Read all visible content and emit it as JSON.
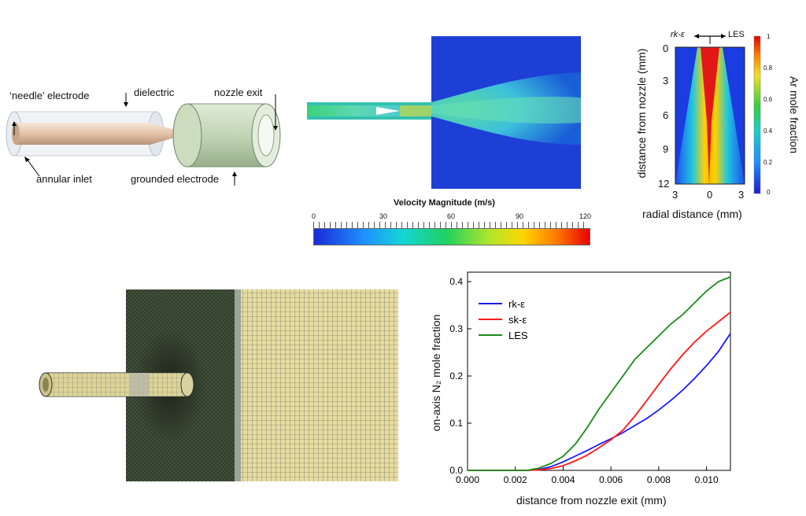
{
  "torch": {
    "labels": {
      "needle": "‘needle’ electrode",
      "dielectric": "dielectric",
      "nozzle_exit": "nozzle exit",
      "annular_inlet": "annular inlet",
      "grounded": "grounded electrode"
    }
  },
  "velocity_plot": {
    "colorbar_title": "Velocity Magnitude (m/s)",
    "ticks": [
      "0",
      "30",
      "60",
      "90",
      "120"
    ]
  },
  "mole_map": {
    "top_left": "rk-ε",
    "top_right": "LES",
    "ylabel": "distance from nozzle  (mm)",
    "xlabel": "radial distance (mm)",
    "yticks": [
      "0",
      "3",
      "6",
      "9",
      "12"
    ],
    "xticks": [
      "3",
      "0",
      "3"
    ],
    "cb_ticks": [
      "1",
      "0.8",
      "0.6",
      "0.4",
      "0.2",
      "0"
    ],
    "cb_label": "Ar mole fraction"
  },
  "chart_data": {
    "type": "line",
    "xlabel": "distance from nozzle exit (mm)",
    "ylabel": "on-axis N₂ mole fraction",
    "xlim": [
      0,
      0.011
    ],
    "ylim": [
      0,
      0.42
    ],
    "xticks": [
      "0.000",
      "0.002",
      "0.004",
      "0.006",
      "0.008",
      "0.010"
    ],
    "yticks": [
      "0.0",
      "0.1",
      "0.2",
      "0.3",
      "0.4"
    ],
    "legend_position": "top-left",
    "grid": false,
    "series": [
      {
        "name": "rk-ε",
        "color": "#1a1aff",
        "x": [
          0,
          0.0025,
          0.003,
          0.0035,
          0.004,
          0.0045,
          0.005,
          0.0055,
          0.006,
          0.0065,
          0.007,
          0.0075,
          0.008,
          0.0085,
          0.009,
          0.0095,
          0.01,
          0.0105,
          0.011
        ],
        "y": [
          0,
          0,
          0.002,
          0.008,
          0.018,
          0.03,
          0.042,
          0.055,
          0.067,
          0.08,
          0.095,
          0.11,
          0.128,
          0.148,
          0.17,
          0.195,
          0.222,
          0.252,
          0.29
        ]
      },
      {
        "name": "sk-ε",
        "color": "#ff1a1a",
        "x": [
          0,
          0.0025,
          0.003,
          0.0035,
          0.004,
          0.0045,
          0.005,
          0.0055,
          0.006,
          0.0065,
          0.007,
          0.0075,
          0.008,
          0.0085,
          0.009,
          0.0095,
          0.01,
          0.0105,
          0.011
        ],
        "y": [
          0,
          0,
          0.001,
          0.004,
          0.01,
          0.02,
          0.032,
          0.048,
          0.065,
          0.085,
          0.115,
          0.148,
          0.182,
          0.215,
          0.245,
          0.272,
          0.295,
          0.315,
          0.335
        ]
      },
      {
        "name": "LES",
        "color": "#1a8a1a",
        "x": [
          0,
          0.0025,
          0.003,
          0.0035,
          0.004,
          0.0045,
          0.005,
          0.0055,
          0.006,
          0.0065,
          0.007,
          0.0075,
          0.008,
          0.0085,
          0.009,
          0.0095,
          0.01,
          0.0105,
          0.011
        ],
        "y": [
          0,
          0,
          0.005,
          0.015,
          0.03,
          0.055,
          0.09,
          0.13,
          0.165,
          0.2,
          0.235,
          0.26,
          0.285,
          0.31,
          0.33,
          0.355,
          0.38,
          0.4,
          0.41
        ]
      }
    ]
  }
}
